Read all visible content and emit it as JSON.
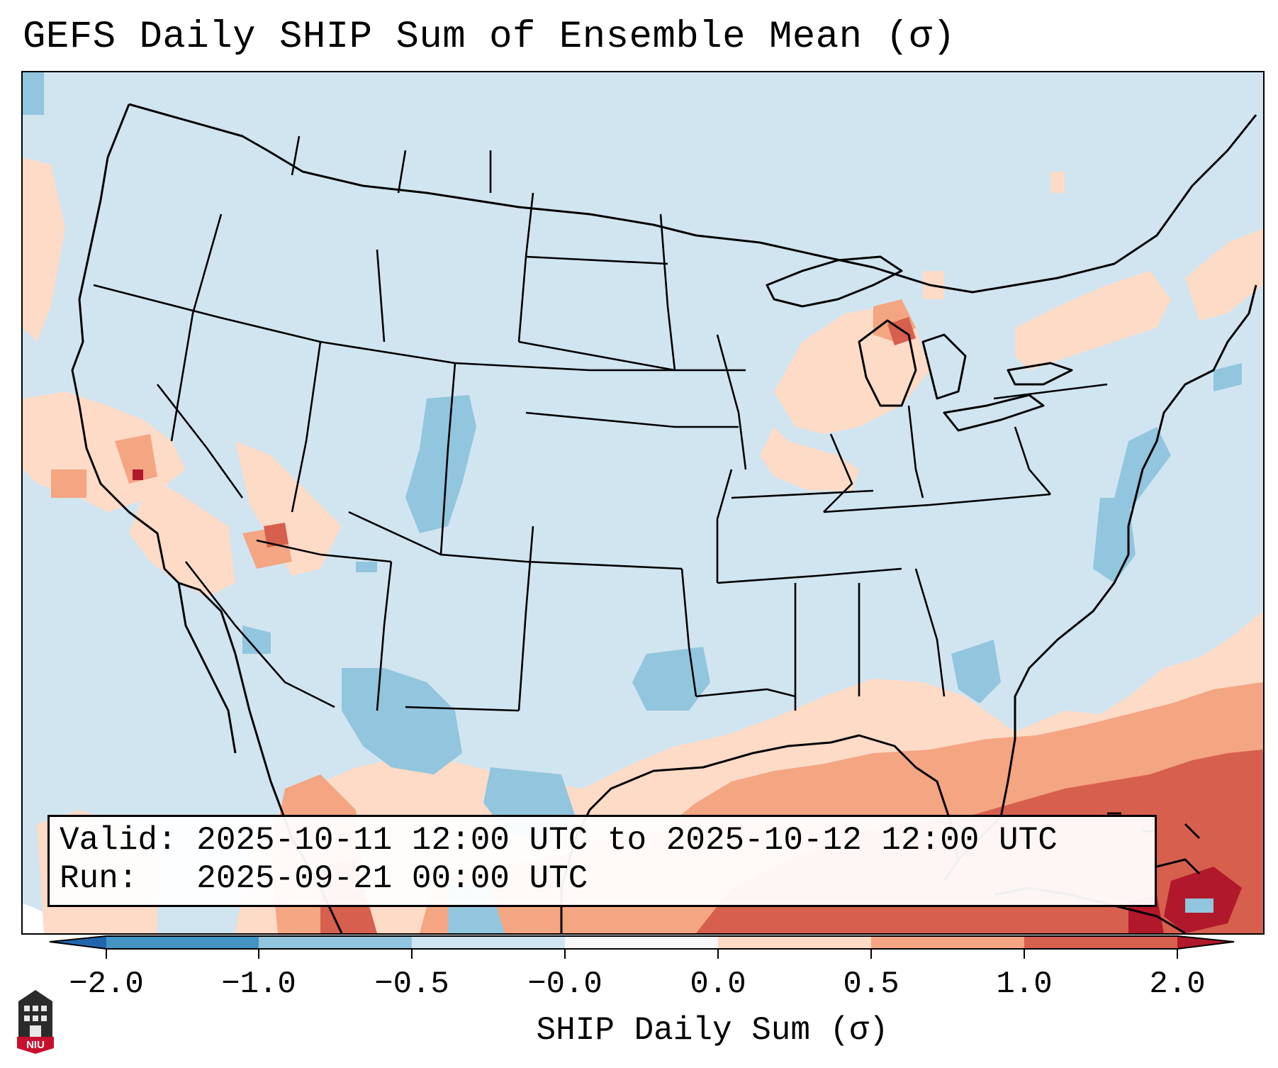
{
  "title": "GEFS Daily SHIP Sum of Ensemble Mean (σ)",
  "info": {
    "valid": "Valid: 2025-10-11 12:00 UTC to 2025-10-12 12:00 UTC",
    "run": "Run:   2025-09-21 00:00 UTC"
  },
  "colorbar": {
    "label": "SHIP Daily Sum (σ)",
    "ticks": [
      "−2.0",
      "−1.0",
      "−0.5",
      "−0.0",
      "0.0",
      "0.5",
      "1.0",
      "2.0"
    ],
    "bin_edges": [
      -2.0,
      -1.0,
      -0.5,
      -0.0,
      0.0,
      0.5,
      1.0,
      2.0
    ],
    "bin_colors": [
      "#4393c3",
      "#92c5de",
      "#d1e5f0",
      "#f7f7f7",
      "#fddbc7",
      "#f4a582",
      "#d6604d"
    ],
    "under_color": "#2166ac",
    "over_color": "#b2182b"
  },
  "map": {
    "base_color": "#d1e5f0",
    "bins": {
      "neg_1_0": "#92c5de",
      "neg_0_5": "#d1e5f0",
      "pos_0_5": "#fddbc7",
      "pos_1_0": "#f4a582",
      "pos_2_0": "#d6604d",
      "over": "#b2182b"
    }
  },
  "logo": {
    "text": "NIU"
  }
}
